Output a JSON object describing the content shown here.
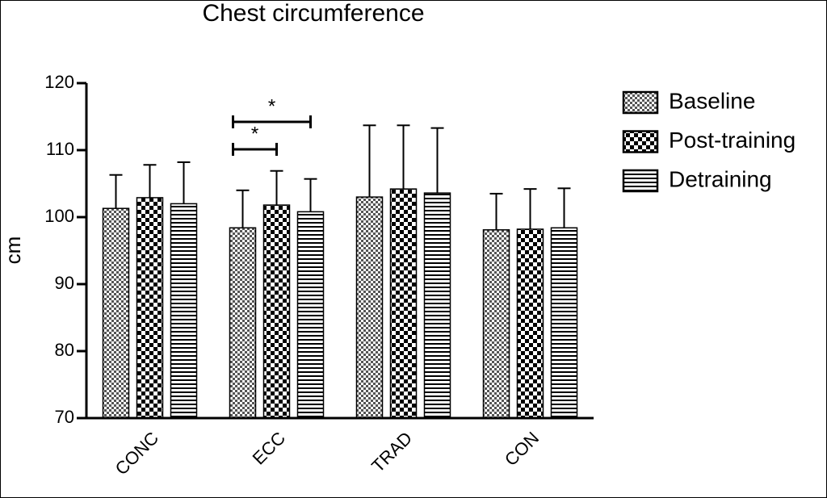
{
  "chart_data": {
    "type": "bar",
    "title": "Chest circumference",
    "y_label": "cm",
    "categories": [
      "CONC",
      "ECC",
      "TRAD",
      "CON"
    ],
    "series": [
      {
        "name": "Baseline",
        "color": "#555555",
        "hatch": "fine-check",
        "values": [
          101.3,
          98.4,
          103.0,
          98.1
        ],
        "errors": [
          5.0,
          5.6,
          10.7,
          5.4
        ]
      },
      {
        "name": "Post-training",
        "color": "#000000",
        "hatch": "check",
        "values": [
          102.9,
          101.8,
          104.2,
          98.2
        ],
        "errors": [
          4.9,
          5.1,
          9.5,
          6.0
        ]
      },
      {
        "name": "Detraining",
        "color": "#000000",
        "hatch": "stripes",
        "values": [
          102.0,
          100.8,
          103.6,
          98.4
        ],
        "errors": [
          6.2,
          4.9,
          9.7,
          5.9
        ]
      }
    ],
    "annotations": [
      "*",
      "*"
    ],
    "ylim": [
      70,
      120
    ],
    "yticks": [
      70,
      80,
      90,
      100,
      110,
      120
    ],
    "legend": "right"
  }
}
